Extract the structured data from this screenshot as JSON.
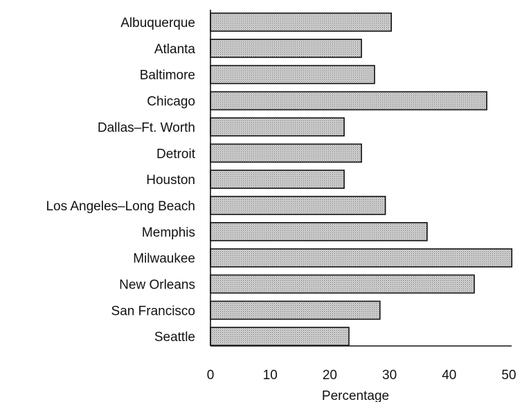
{
  "chart_data": {
    "type": "bar",
    "orientation": "horizontal",
    "categories": [
      "Albuquerque",
      "Atlanta",
      "Baltimore",
      "Chicago",
      "Dallas–Ft. Worth",
      "Detroit",
      "Houston",
      "Los Angeles–Long Beach",
      "Memphis",
      "Milwaukee",
      "New Orleans",
      "San Francisco",
      "Seattle"
    ],
    "values": [
      30.3,
      25.3,
      27.5,
      46.3,
      22.4,
      25.3,
      22.4,
      29.3,
      36.3,
      50.5,
      44.2,
      28.4,
      23.2
    ],
    "title": "",
    "xlabel": "Percentage",
    "ylabel": "",
    "xlim": [
      0,
      50
    ],
    "x_ticks": [
      0,
      10,
      20,
      30,
      40,
      50
    ],
    "grid": false,
    "legend": "none",
    "bar_fill": "#c9c9c9",
    "bar_edge": "#111111"
  }
}
